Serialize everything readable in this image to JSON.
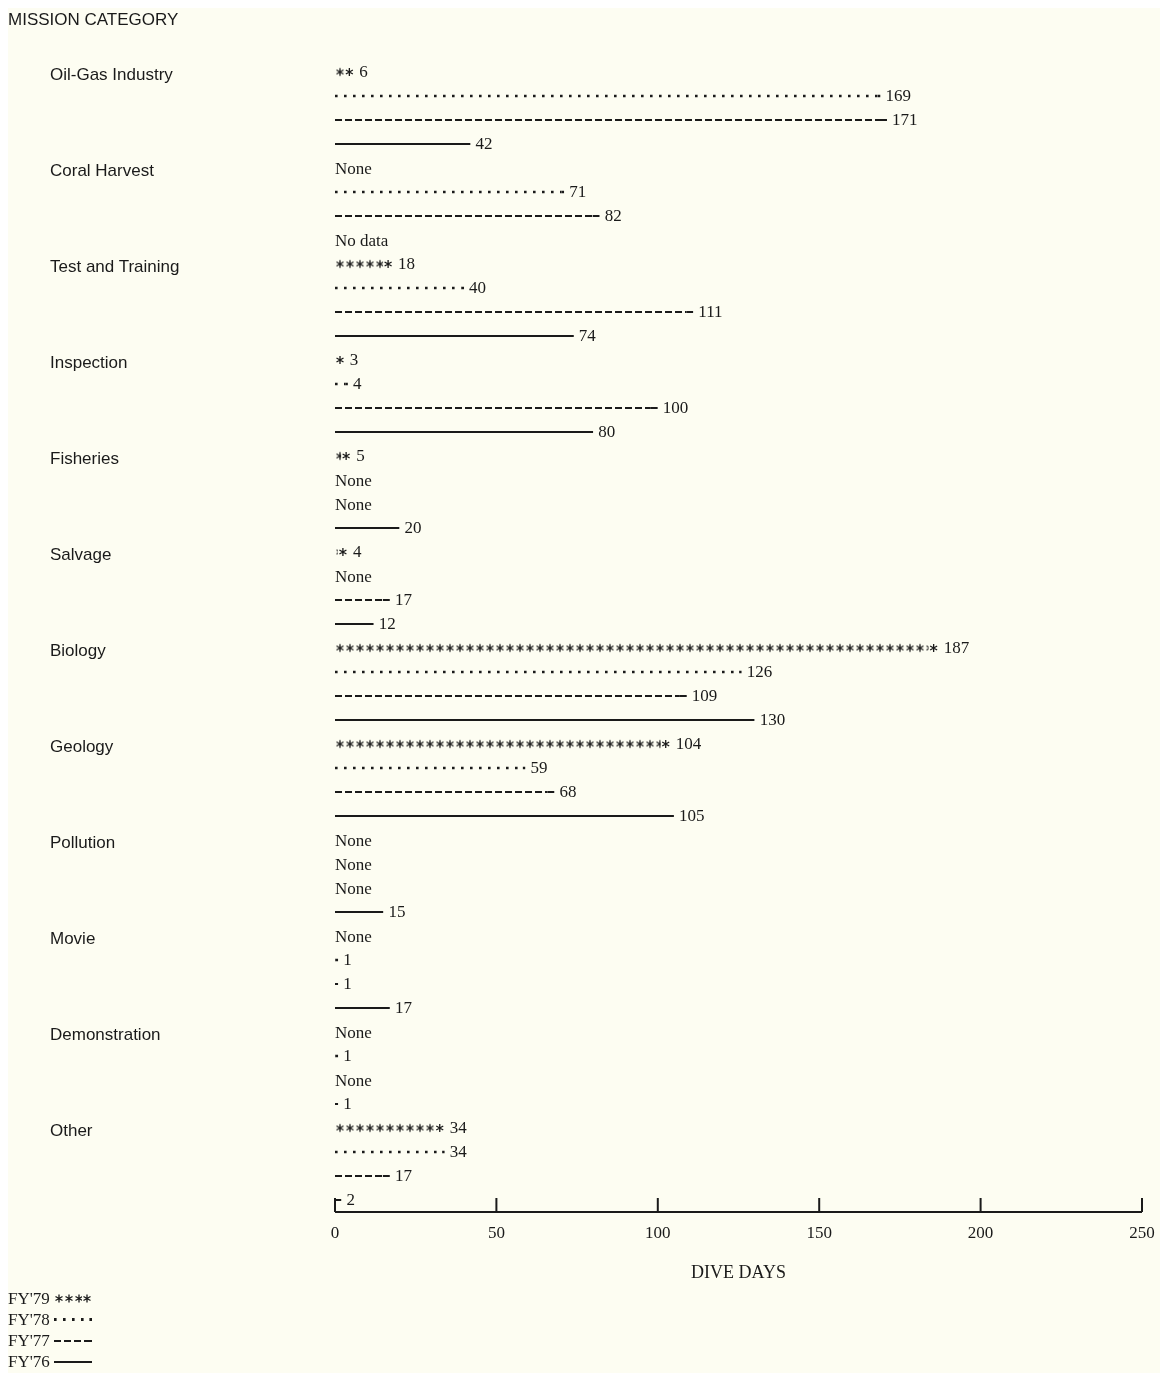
{
  "chart_data": {
    "type": "bar",
    "orientation": "horizontal",
    "ylabel": "MISSION CATEGORY",
    "xlabel": "DIVE DAYS",
    "categories": [
      "Oil-Gas Industry",
      "Coral Harvest",
      "Test and Training",
      "Inspection",
      "Fisheries",
      "Salvage",
      "Biology",
      "Geology",
      "Pollution",
      "Movie",
      "Demonstration",
      "Other"
    ],
    "series": [
      {
        "name": "FY'79",
        "color": "#1a1a1a",
        "marker": "star",
        "values": [
          6,
          null,
          18,
          3,
          5,
          4,
          187,
          104,
          null,
          null,
          null,
          34
        ],
        "value_labels": [
          "6",
          "None",
          "18",
          "3",
          "5",
          "4",
          "187",
          "104",
          "None",
          "None",
          "None",
          "34"
        ]
      },
      {
        "name": "FY'78",
        "color": "#1a1a1a",
        "line_style": "dotted",
        "values": [
          169,
          71,
          40,
          4,
          null,
          null,
          126,
          59,
          null,
          1,
          1,
          34
        ],
        "value_labels": [
          "169",
          "71",
          "40",
          "4",
          "None",
          "None",
          "126",
          "59",
          "None",
          "1",
          "1",
          "34"
        ]
      },
      {
        "name": "FY'77",
        "color": "#1a1a1a",
        "line_style": "dashed",
        "values": [
          171,
          82,
          111,
          100,
          null,
          17,
          109,
          68,
          null,
          1,
          null,
          17
        ],
        "value_labels": [
          "171",
          "82",
          "111",
          "100",
          "None",
          "17",
          "109",
          "68",
          "None",
          "1",
          "None",
          "17"
        ]
      },
      {
        "name": "FY'76",
        "color": "#1a1a1a",
        "line_style": "solid",
        "values": [
          42,
          null,
          74,
          80,
          20,
          12,
          130,
          105,
          15,
          17,
          1,
          2
        ],
        "value_labels": [
          "42",
          "No data",
          "74",
          "80",
          "20",
          "12",
          "130",
          "105",
          "15",
          "17",
          "1",
          "2"
        ]
      }
    ],
    "xlim": [
      0,
      250
    ],
    "xticks": [
      0,
      50,
      100,
      150,
      200,
      250
    ],
    "grid": false,
    "legend": "bottom left"
  }
}
